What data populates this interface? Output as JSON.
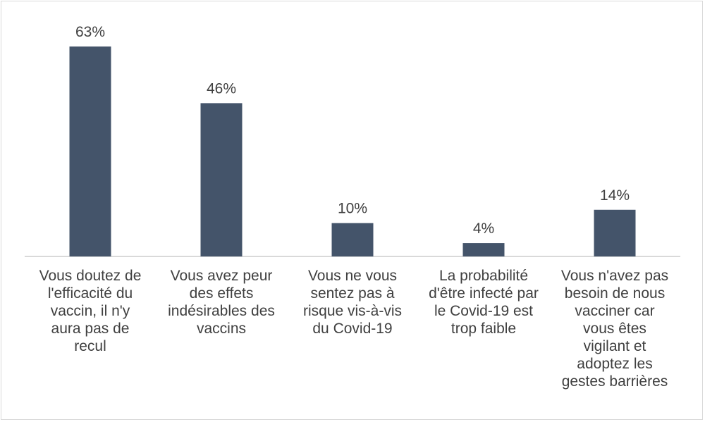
{
  "chart_data": {
    "type": "bar",
    "categories": [
      "Vous doutez de l'efficacité du vaccin, il n'y aura pas de recul",
      "Vous avez peur des effets indésirables des vaccins",
      "Vous ne vous sentez pas à risque vis-à-vis du Covid-19",
      "La probabilité d'être infecté par le Covid-19 est trop faible",
      "Vous n'avez pas besoin de nous vacciner car vous êtes vigilant et adoptez les gestes barrières"
    ],
    "category_lines": [
      [
        "Vous doutez de",
        "l'efficacité du",
        "vaccin, il n'y",
        "aura pas de",
        "recul"
      ],
      [
        "Vous avez peur",
        "des effets",
        "indésirables des",
        "vaccins"
      ],
      [
        "Vous ne vous",
        "sentez pas à",
        "risque vis-à-vis",
        "du Covid-19"
      ],
      [
        "La probabilité",
        "d'être infecté par",
        "le Covid-19 est",
        "trop faible"
      ],
      [
        "Vous n'avez pas",
        "besoin de nous",
        "vacciner car",
        "vous êtes",
        "vigilant et",
        "adoptez les",
        "gestes barrières"
      ]
    ],
    "values": [
      63,
      46,
      10,
      4,
      14
    ],
    "data_labels": [
      "63%",
      "46%",
      "10%",
      "4%",
      "14%"
    ],
    "title": "",
    "xlabel": "",
    "ylabel": "",
    "ylim": [
      0,
      63
    ],
    "grid": false,
    "legend": "none",
    "colors": {
      "bar": "#44546a",
      "axis": "#d9d9d9",
      "text": "#404040"
    }
  }
}
